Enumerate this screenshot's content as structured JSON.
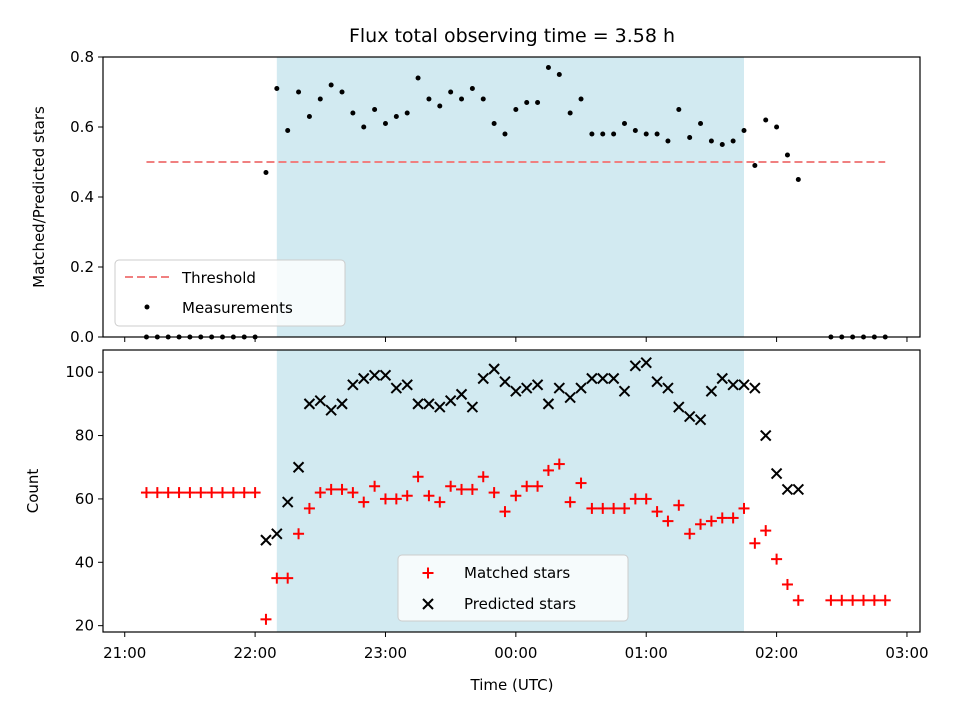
{
  "figure": {
    "title": "Flux total observing time = 3.58 h",
    "xlabel": "Time (UTC)",
    "colors": {
      "highlight": "#add8e6",
      "threshold": "#f08080",
      "measurements": "#000000",
      "matched": "#ff0000",
      "predicted": "#000000"
    }
  },
  "chart_data": [
    {
      "type": "scatter",
      "title": "Flux total observing time = 3.58 h",
      "ylabel": "Matched/Predicted stars",
      "xlabel": "Time (UTC)",
      "xlim": [
        "20:50",
        "03:06"
      ],
      "ylim": [
        0,
        0.8
      ],
      "xticks": [
        "21:00",
        "22:00",
        "23:00",
        "00:00",
        "01:00",
        "02:00",
        "03:00"
      ],
      "yticks": [
        0.0,
        0.2,
        0.4,
        0.6,
        0.8
      ],
      "ytick_labels": [
        "0.0",
        "0.2",
        "0.4",
        "0.6",
        "0.8"
      ],
      "highlight_span": [
        "22:10",
        "01:45"
      ],
      "legend": {
        "position": "lower-left",
        "entries": [
          "Threshold",
          "Measurements"
        ]
      },
      "series": [
        {
          "name": "Threshold",
          "style": "dashed-line",
          "x": [
            "21:10",
            "02:50"
          ],
          "y": [
            0.5,
            0.5
          ]
        },
        {
          "name": "Measurements",
          "style": "dot",
          "x": [
            "21:10",
            "21:15",
            "21:20",
            "21:25",
            "21:30",
            "21:35",
            "21:40",
            "21:45",
            "21:50",
            "21:55",
            "22:00",
            "22:05",
            "22:10",
            "22:15",
            "22:20",
            "22:25",
            "22:30",
            "22:35",
            "22:40",
            "22:45",
            "22:50",
            "22:55",
            "23:00",
            "23:05",
            "23:10",
            "23:15",
            "23:20",
            "23:25",
            "23:30",
            "23:35",
            "23:40",
            "23:45",
            "23:50",
            "23:55",
            "00:00",
            "00:05",
            "00:10",
            "00:15",
            "00:20",
            "00:25",
            "00:30",
            "00:35",
            "00:40",
            "00:45",
            "00:50",
            "00:55",
            "01:00",
            "01:05",
            "01:10",
            "01:15",
            "01:20",
            "01:25",
            "01:30",
            "01:35",
            "01:40",
            "01:45",
            "01:50",
            "01:55",
            "02:00",
            "02:05",
            "02:10",
            "02:25",
            "02:30",
            "02:35",
            "02:40",
            "02:45",
            "02:50"
          ],
          "y": [
            0,
            0,
            0,
            0,
            0,
            0,
            0,
            0,
            0,
            0,
            0,
            0.47,
            0.71,
            0.59,
            0.7,
            0.63,
            0.68,
            0.72,
            0.7,
            0.64,
            0.6,
            0.65,
            0.61,
            0.63,
            0.64,
            0.74,
            0.68,
            0.66,
            0.7,
            0.68,
            0.71,
            0.68,
            0.61,
            0.58,
            0.65,
            0.67,
            0.67,
            0.77,
            0.75,
            0.64,
            0.68,
            0.58,
            0.58,
            0.58,
            0.61,
            0.59,
            0.58,
            0.58,
            0.56,
            0.65,
            0.57,
            0.61,
            0.56,
            0.55,
            0.56,
            0.59,
            0.49,
            0.62,
            0.6,
            0.52,
            0.45,
            0,
            0,
            0,
            0,
            0,
            0
          ]
        }
      ]
    },
    {
      "type": "scatter",
      "ylabel": "Count",
      "xlabel": "Time (UTC)",
      "xlim": [
        "20:50",
        "03:06"
      ],
      "ylim": [
        18,
        107
      ],
      "xticks": [
        "21:00",
        "22:00",
        "23:00",
        "00:00",
        "01:00",
        "02:00",
        "03:00"
      ],
      "yticks": [
        20,
        40,
        60,
        80,
        100
      ],
      "ytick_labels": [
        "20",
        "40",
        "60",
        "80",
        "100"
      ],
      "highlight_span": [
        "22:10",
        "01:45"
      ],
      "legend": {
        "position": "lower-center",
        "entries": [
          "Matched stars",
          "Predicted stars"
        ]
      },
      "series": [
        {
          "name": "Matched stars",
          "style": "plus",
          "x": [
            "21:10",
            "21:15",
            "21:20",
            "21:25",
            "21:30",
            "21:35",
            "21:40",
            "21:45",
            "21:50",
            "21:55",
            "22:00",
            "22:05",
            "22:10",
            "22:15",
            "22:20",
            "22:25",
            "22:30",
            "22:35",
            "22:40",
            "22:45",
            "22:50",
            "22:55",
            "23:00",
            "23:05",
            "23:10",
            "23:15",
            "23:20",
            "23:25",
            "23:30",
            "23:35",
            "23:40",
            "23:45",
            "23:50",
            "23:55",
            "00:00",
            "00:05",
            "00:10",
            "00:15",
            "00:20",
            "00:25",
            "00:30",
            "00:35",
            "00:40",
            "00:45",
            "00:50",
            "00:55",
            "01:00",
            "01:05",
            "01:10",
            "01:15",
            "01:20",
            "01:25",
            "01:30",
            "01:35",
            "01:40",
            "01:45",
            "01:50",
            "01:55",
            "02:00",
            "02:05",
            "02:10",
            "02:25",
            "02:30",
            "02:35",
            "02:40",
            "02:45",
            "02:50"
          ],
          "y": [
            62,
            62,
            62,
            62,
            62,
            62,
            62,
            62,
            62,
            62,
            62,
            22,
            35,
            35,
            49,
            57,
            62,
            63,
            63,
            62,
            59,
            64,
            60,
            60,
            61,
            67,
            61,
            59,
            64,
            63,
            63,
            67,
            62,
            56,
            61,
            64,
            64,
            69,
            71,
            59,
            65,
            57,
            57,
            57,
            57,
            60,
            60,
            56,
            53,
            58,
            49,
            52,
            53,
            54,
            54,
            57,
            46,
            50,
            41,
            33,
            28,
            28,
            28,
            28,
            28,
            28,
            28
          ]
        },
        {
          "name": "Predicted stars",
          "style": "x",
          "x": [
            "22:05",
            "22:10",
            "22:15",
            "22:20",
            "22:25",
            "22:30",
            "22:35",
            "22:40",
            "22:45",
            "22:50",
            "22:55",
            "23:00",
            "23:05",
            "23:10",
            "23:15",
            "23:20",
            "23:25",
            "23:30",
            "23:35",
            "23:40",
            "23:45",
            "23:50",
            "23:55",
            "00:00",
            "00:05",
            "00:10",
            "00:15",
            "00:20",
            "00:25",
            "00:30",
            "00:35",
            "00:40",
            "00:45",
            "00:50",
            "00:55",
            "01:00",
            "01:05",
            "01:10",
            "01:15",
            "01:20",
            "01:25",
            "01:30",
            "01:35",
            "01:40",
            "01:45",
            "01:50",
            "01:55",
            "02:00",
            "02:05",
            "02:10"
          ],
          "y": [
            47,
            49,
            59,
            70,
            90,
            91,
            88,
            90,
            96,
            98,
            99,
            99,
            95,
            96,
            90,
            90,
            89,
            91,
            93,
            89,
            98,
            101,
            97,
            94,
            95,
            96,
            90,
            95,
            92,
            95,
            98,
            98,
            98,
            94,
            102,
            103,
            97,
            95,
            89,
            86,
            85,
            94,
            98,
            96,
            96,
            95,
            80,
            68,
            63,
            63
          ]
        }
      ]
    }
  ]
}
